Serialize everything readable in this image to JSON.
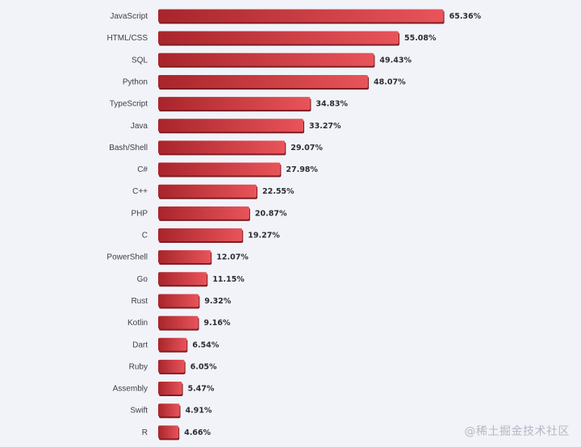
{
  "chart_data": {
    "type": "bar",
    "orientation": "horizontal",
    "categories": [
      "JavaScript",
      "HTML/CSS",
      "SQL",
      "Python",
      "TypeScript",
      "Java",
      "Bash/Shell",
      "C#",
      "C++",
      "PHP",
      "C",
      "PowerShell",
      "Go",
      "Rust",
      "Kotlin",
      "Dart",
      "Ruby",
      "Assembly",
      "Swift",
      "R"
    ],
    "values": [
      65.36,
      55.08,
      49.43,
      48.07,
      34.83,
      33.27,
      29.07,
      27.98,
      22.55,
      20.87,
      19.27,
      12.07,
      11.15,
      9.32,
      9.16,
      6.54,
      6.05,
      5.47,
      4.91,
      4.66
    ],
    "value_labels": [
      "65.36%",
      "55.08%",
      "49.43%",
      "48.07%",
      "34.83%",
      "33.27%",
      "29.07%",
      "27.98%",
      "22.55%",
      "20.87%",
      "19.27%",
      "12.07%",
      "11.15%",
      "9.32%",
      "9.16%",
      "6.54%",
      "6.05%",
      "5.47%",
      "4.91%",
      "4.66%"
    ],
    "title": "",
    "xlabel": "",
    "ylabel": "",
    "xlim": [
      0,
      100
    ],
    "grid": false,
    "legend": "none",
    "colors": {
      "bar_dark": "#a8252b",
      "bar_light": "#e8545a",
      "bar_shadow": "#7e1d22"
    }
  },
  "watermark": "@稀土掘金技术社区"
}
